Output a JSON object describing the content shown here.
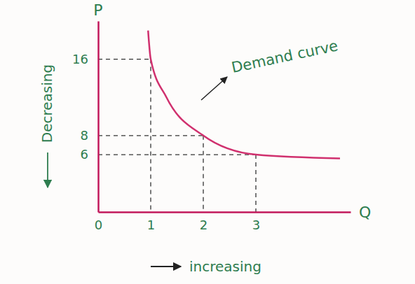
{
  "chart_data": {
    "type": "line",
    "x_label": "Q",
    "y_label": "P",
    "series": [
      {
        "name": "Demand curve",
        "color": "#d0306e",
        "line_style": "solid",
        "x": [
          0.95,
          1,
          1.3,
          2,
          3,
          4.6
        ],
        "values": [
          19,
          16,
          12,
          8,
          6,
          5.6
        ]
      }
    ],
    "xlim": [
      0,
      4.8
    ],
    "ylim": [
      0,
      20
    ],
    "xticks": [
      0,
      1,
      2,
      3
    ],
    "yticks": [
      6,
      8,
      16
    ],
    "grid": false,
    "annotations": [
      "Decreasing",
      "increasing"
    ]
  }
}
